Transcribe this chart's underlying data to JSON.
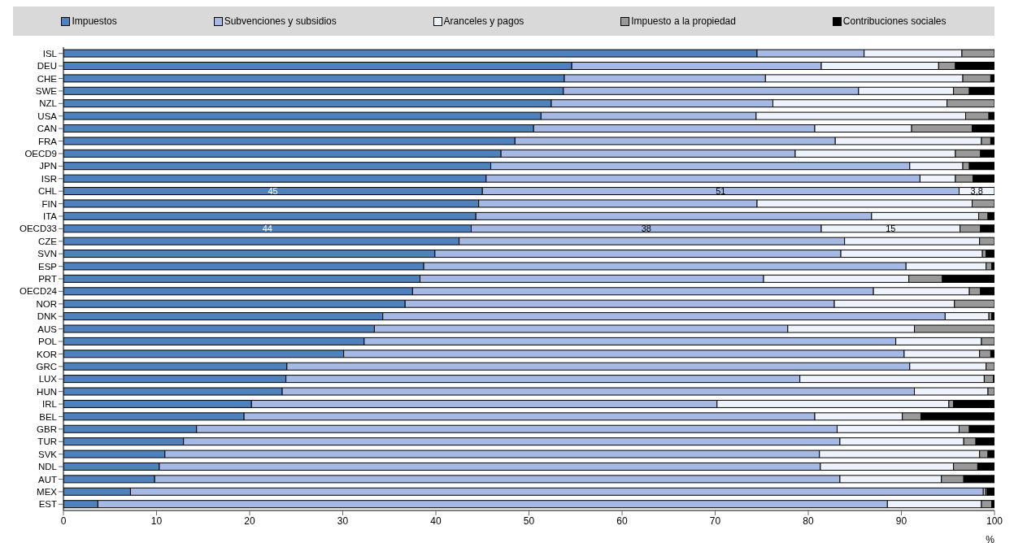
{
  "chart_data": {
    "type": "bar",
    "orientation": "horizontal",
    "stacked": true,
    "xlabel": "%",
    "legend": "top",
    "categories": [
      "ISL",
      "DEU",
      "CHE",
      "SWE",
      "NZL",
      "USA",
      "CAN",
      "FRA",
      "OECD9",
      "JPN",
      "ISR",
      "CHL",
      "FIN",
      "ITA",
      "OECD33",
      "CZE",
      "SVN",
      "ESP",
      "PRT",
      "OECD24",
      "NOR",
      "DNK",
      "AUS",
      "POL",
      "KOR",
      "GRC",
      "LUX",
      "HUN",
      "IRL",
      "BEL",
      "GBR",
      "TUR",
      "SVK",
      "NDL",
      "AUT",
      "MEX",
      "EST"
    ],
    "xlim": [
      0,
      100
    ],
    "xticks": [
      0,
      10,
      20,
      30,
      40,
      50,
      60,
      70,
      80,
      90,
      100
    ],
    "series": [
      {
        "name": "Impuestos",
        "color": "#4f81bd",
        "values": [
          74.5,
          54.6,
          53.8,
          53.7,
          52.4,
          51.3,
          50.5,
          48.5,
          47,
          45.9,
          45.4,
          45,
          44.6,
          44.3,
          43.8,
          42.5,
          39.9,
          38.7,
          38.3,
          37.5,
          36.7,
          34.3,
          33.4,
          32.3,
          30.1,
          24,
          23.9,
          23.5,
          20.2,
          19.4,
          14.3,
          12.9,
          10.9,
          10.3,
          9.8,
          7.2,
          3.7
        ],
        "value_labels": [
          null,
          null,
          null,
          null,
          null,
          null,
          null,
          null,
          null,
          null,
          null,
          "45",
          null,
          null,
          "44",
          null,
          null,
          null,
          null,
          null,
          null,
          null,
          null,
          null,
          null,
          null,
          null,
          null,
          null,
          null,
          null,
          null,
          null,
          null,
          null,
          null,
          null
        ]
      },
      {
        "name": "Subvenciones y subsidios",
        "color": "#a6b8e4",
        "values": [
          11.5,
          26.8,
          21.6,
          31.7,
          23.8,
          23.1,
          30.2,
          34.4,
          31.6,
          45,
          46.6,
          51.2,
          29.9,
          42.5,
          37.6,
          41.4,
          43.6,
          51.8,
          36.9,
          49.5,
          46.1,
          60.4,
          44.4,
          57.1,
          60.2,
          66.9,
          55.2,
          67.9,
          50,
          61.3,
          68.8,
          70.5,
          70.3,
          71,
          73.6,
          91.6,
          84.8
        ],
        "value_labels": [
          null,
          null,
          null,
          null,
          null,
          null,
          null,
          null,
          null,
          null,
          null,
          "51",
          null,
          null,
          "38",
          null,
          null,
          null,
          null,
          null,
          null,
          null,
          null,
          null,
          null,
          null,
          null,
          null,
          null,
          null,
          null,
          null,
          null,
          null,
          null,
          null,
          null
        ]
      },
      {
        "name": "Aranceles y pagos",
        "color": "#eef2fb",
        "values": [
          10.5,
          12.6,
          21.2,
          10.2,
          18.7,
          22.5,
          10.4,
          15.7,
          17.2,
          5.7,
          3.8,
          3.8,
          23.1,
          11.5,
          14.9,
          14.5,
          15.2,
          8.6,
          15.6,
          10.3,
          12.9,
          4.7,
          13.6,
          9.2,
          8.1,
          8.2,
          19.8,
          7.9,
          24.9,
          9.4,
          13.1,
          13.3,
          17.2,
          14.3,
          10.9,
          0.2,
          10.1
        ],
        "value_labels": [
          null,
          null,
          null,
          null,
          null,
          null,
          null,
          null,
          null,
          null,
          null,
          "3,8",
          null,
          null,
          "15",
          null,
          null,
          null,
          null,
          null,
          null,
          null,
          null,
          null,
          null,
          null,
          null,
          null,
          null,
          null,
          null,
          null,
          null,
          null,
          null,
          null,
          null
        ]
      },
      {
        "name": "Impuesto a la propiedad",
        "color": "#999999",
        "values": [
          3.5,
          1.8,
          3,
          1.7,
          5.1,
          2.5,
          6.5,
          1,
          2.7,
          0.7,
          1.9,
          0,
          2.4,
          1,
          2.2,
          1.6,
          0.4,
          0.6,
          3.6,
          1.2,
          4.3,
          0.3,
          8.6,
          1.4,
          1.2,
          0.9,
          1,
          0.7,
          0.5,
          2,
          1.1,
          1.3,
          0.9,
          2.6,
          2.4,
          0.2,
          1.1
        ]
      },
      {
        "name": "Contribuciones sociales",
        "color": "#000000",
        "values": [
          0,
          4.2,
          0.4,
          2.7,
          0,
          0.6,
          2.4,
          0.4,
          1.5,
          2.7,
          2.3,
          0,
          0,
          0.7,
          1.5,
          0,
          0.9,
          0.3,
          5.6,
          1.5,
          0,
          0.3,
          0,
          0,
          0.4,
          0,
          0.1,
          0,
          4.4,
          7.9,
          2.7,
          2,
          0.7,
          1.8,
          3.3,
          0.8,
          0.3
        ]
      }
    ]
  }
}
